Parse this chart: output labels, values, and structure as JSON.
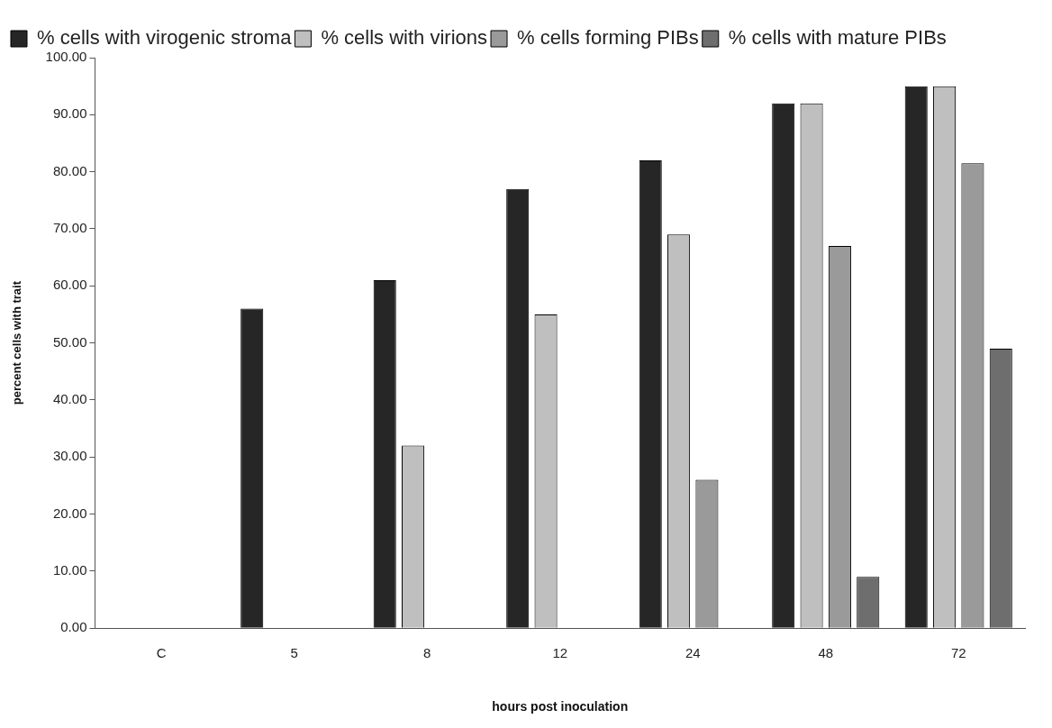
{
  "chart_data": {
    "type": "bar",
    "xlabel": "hours post inoculation",
    "ylabel": "percent cells with trait",
    "categories": [
      "C",
      "5",
      "8",
      "12",
      "24",
      "48",
      "72"
    ],
    "series": [
      {
        "name": "% cells with virogenic stroma",
        "color": "#262626",
        "values": [
          0,
          56,
          61,
          77,
          82,
          92,
          95
        ]
      },
      {
        "name": "% cells with virions",
        "color": "#bfbfbf",
        "values": [
          0,
          0,
          32,
          55,
          69,
          92,
          95
        ]
      },
      {
        "name": "% cells forming PIBs",
        "color": "#9a9a9a",
        "values": [
          0,
          0,
          0,
          0,
          26,
          67,
          81.5
        ]
      },
      {
        "name": "% cells with mature PIBs",
        "color": "#6e6e6e",
        "values": [
          0,
          0,
          0,
          0,
          0,
          9,
          49
        ]
      }
    ],
    "ylim": [
      0,
      100
    ],
    "yticks": [
      {
        "value": 0,
        "label": "0.00"
      },
      {
        "value": 10,
        "label": "10.00"
      },
      {
        "value": 20,
        "label": "20.00"
      },
      {
        "value": 30,
        "label": "30.00"
      },
      {
        "value": 40,
        "label": "40.00"
      },
      {
        "value": 50,
        "label": "50.00"
      },
      {
        "value": 60,
        "label": "60.00"
      },
      {
        "value": 70,
        "label": "70.00"
      },
      {
        "value": 80,
        "label": "80.00"
      },
      {
        "value": 90,
        "label": "90.00"
      },
      {
        "value": 100,
        "label": "100.00"
      }
    ],
    "grid": false,
    "legend": "top left"
  }
}
